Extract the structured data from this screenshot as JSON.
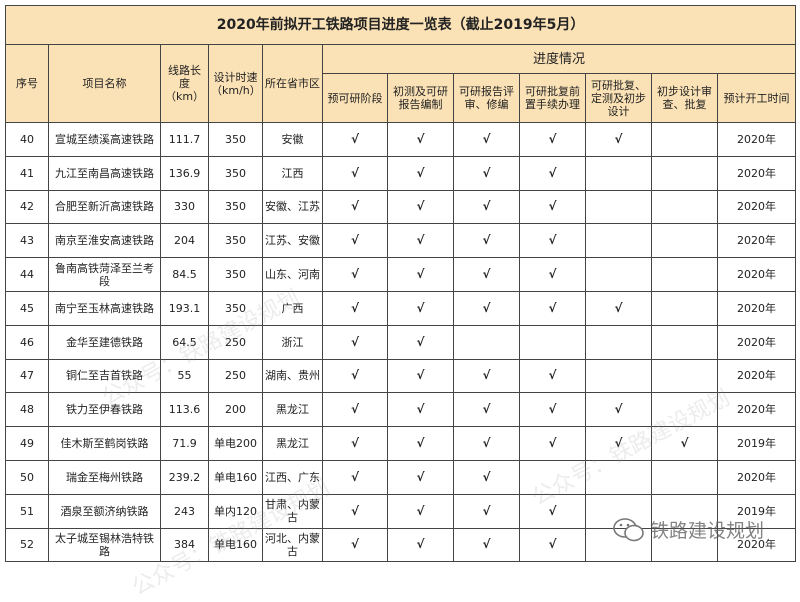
{
  "title": "2020年前拟开工铁路项目进度一览表（截止2019年5月）",
  "headers": {
    "seq": "序号",
    "name": "项目名称",
    "length": "线路长度（km）",
    "speed": "设计时速（km/h）",
    "province": "所在省市区",
    "progress": "进度情况",
    "stages": [
      "预可研阶段",
      "初测及可研报告编制",
      "可研报告评审、修编",
      "可研批复前置手续办理",
      "可研批复、定测及初步设计",
      "初步设计审查、批复"
    ],
    "start": "预计开工时间"
  },
  "check_mark": "√",
  "rows": [
    {
      "seq": "40",
      "name": "宣城至绩溪高速铁路",
      "length": "111.7",
      "speed": "350",
      "province": "安徽",
      "stages": [
        1,
        1,
        1,
        1,
        1,
        0
      ],
      "start": "2020年"
    },
    {
      "seq": "41",
      "name": "九江至南昌高速铁路",
      "length": "136.9",
      "speed": "350",
      "province": "江西",
      "stages": [
        1,
        1,
        1,
        1,
        0,
        0
      ],
      "start": "2020年"
    },
    {
      "seq": "42",
      "name": "合肥至新沂高速铁路",
      "length": "330",
      "speed": "350",
      "province": "安徽、江苏",
      "stages": [
        1,
        1,
        1,
        1,
        0,
        0
      ],
      "start": "2020年"
    },
    {
      "seq": "43",
      "name": "南京至淮安高速铁路",
      "length": "204",
      "speed": "350",
      "province": "江苏、安徽",
      "stages": [
        1,
        1,
        1,
        1,
        0,
        0
      ],
      "start": "2020年"
    },
    {
      "seq": "44",
      "name": "鲁南高铁菏泽至兰考段",
      "length": "84.5",
      "speed": "350",
      "province": "山东、河南",
      "stages": [
        1,
        1,
        1,
        1,
        0,
        0
      ],
      "start": "2020年"
    },
    {
      "seq": "45",
      "name": "南宁至玉林高速铁路",
      "length": "193.1",
      "speed": "350",
      "province": "广西",
      "stages": [
        1,
        1,
        1,
        1,
        1,
        0
      ],
      "start": "2020年"
    },
    {
      "seq": "46",
      "name": "金华至建德铁路",
      "length": "64.5",
      "speed": "250",
      "province": "浙江",
      "stages": [
        1,
        1,
        0,
        0,
        0,
        0
      ],
      "start": "2020年"
    },
    {
      "seq": "47",
      "name": "铜仁至吉首铁路",
      "length": "55",
      "speed": "250",
      "province": "湖南、贵州",
      "stages": [
        1,
        1,
        1,
        1,
        0,
        0
      ],
      "start": "2020年"
    },
    {
      "seq": "48",
      "name": "铁力至伊春铁路",
      "length": "113.6",
      "speed": "200",
      "province": "黑龙江",
      "stages": [
        1,
        1,
        1,
        1,
        1,
        0
      ],
      "start": "2020年"
    },
    {
      "seq": "49",
      "name": "佳木斯至鹤岗铁路",
      "length": "71.9",
      "speed": "单电200",
      "province": "黑龙江",
      "stages": [
        1,
        1,
        1,
        1,
        1,
        1
      ],
      "start": "2019年"
    },
    {
      "seq": "50",
      "name": "瑞金至梅州铁路",
      "length": "239.2",
      "speed": "单电160",
      "province": "江西、广东",
      "stages": [
        1,
        1,
        1,
        0,
        0,
        0
      ],
      "start": "2020年"
    },
    {
      "seq": "51",
      "name": "酒泉至额济纳铁路",
      "length": "243",
      "speed": "单内120",
      "province": "甘肃、内蒙古",
      "stages": [
        1,
        1,
        1,
        1,
        0,
        0
      ],
      "start": "2019年"
    },
    {
      "seq": "52",
      "name": "太子城至锡林浩特铁路",
      "length": "384",
      "speed": "单电160",
      "province": "河北、内蒙古",
      "stages": [
        1,
        1,
        1,
        1,
        0,
        0
      ],
      "start": "2020年"
    }
  ],
  "watermark": {
    "text": "公众号：铁路建设规划",
    "logo_text": "铁路建设规划",
    "logo_icon": "wechat-icon"
  },
  "colors": {
    "header_bg": "#fbe2b6",
    "border": "#444444"
  }
}
